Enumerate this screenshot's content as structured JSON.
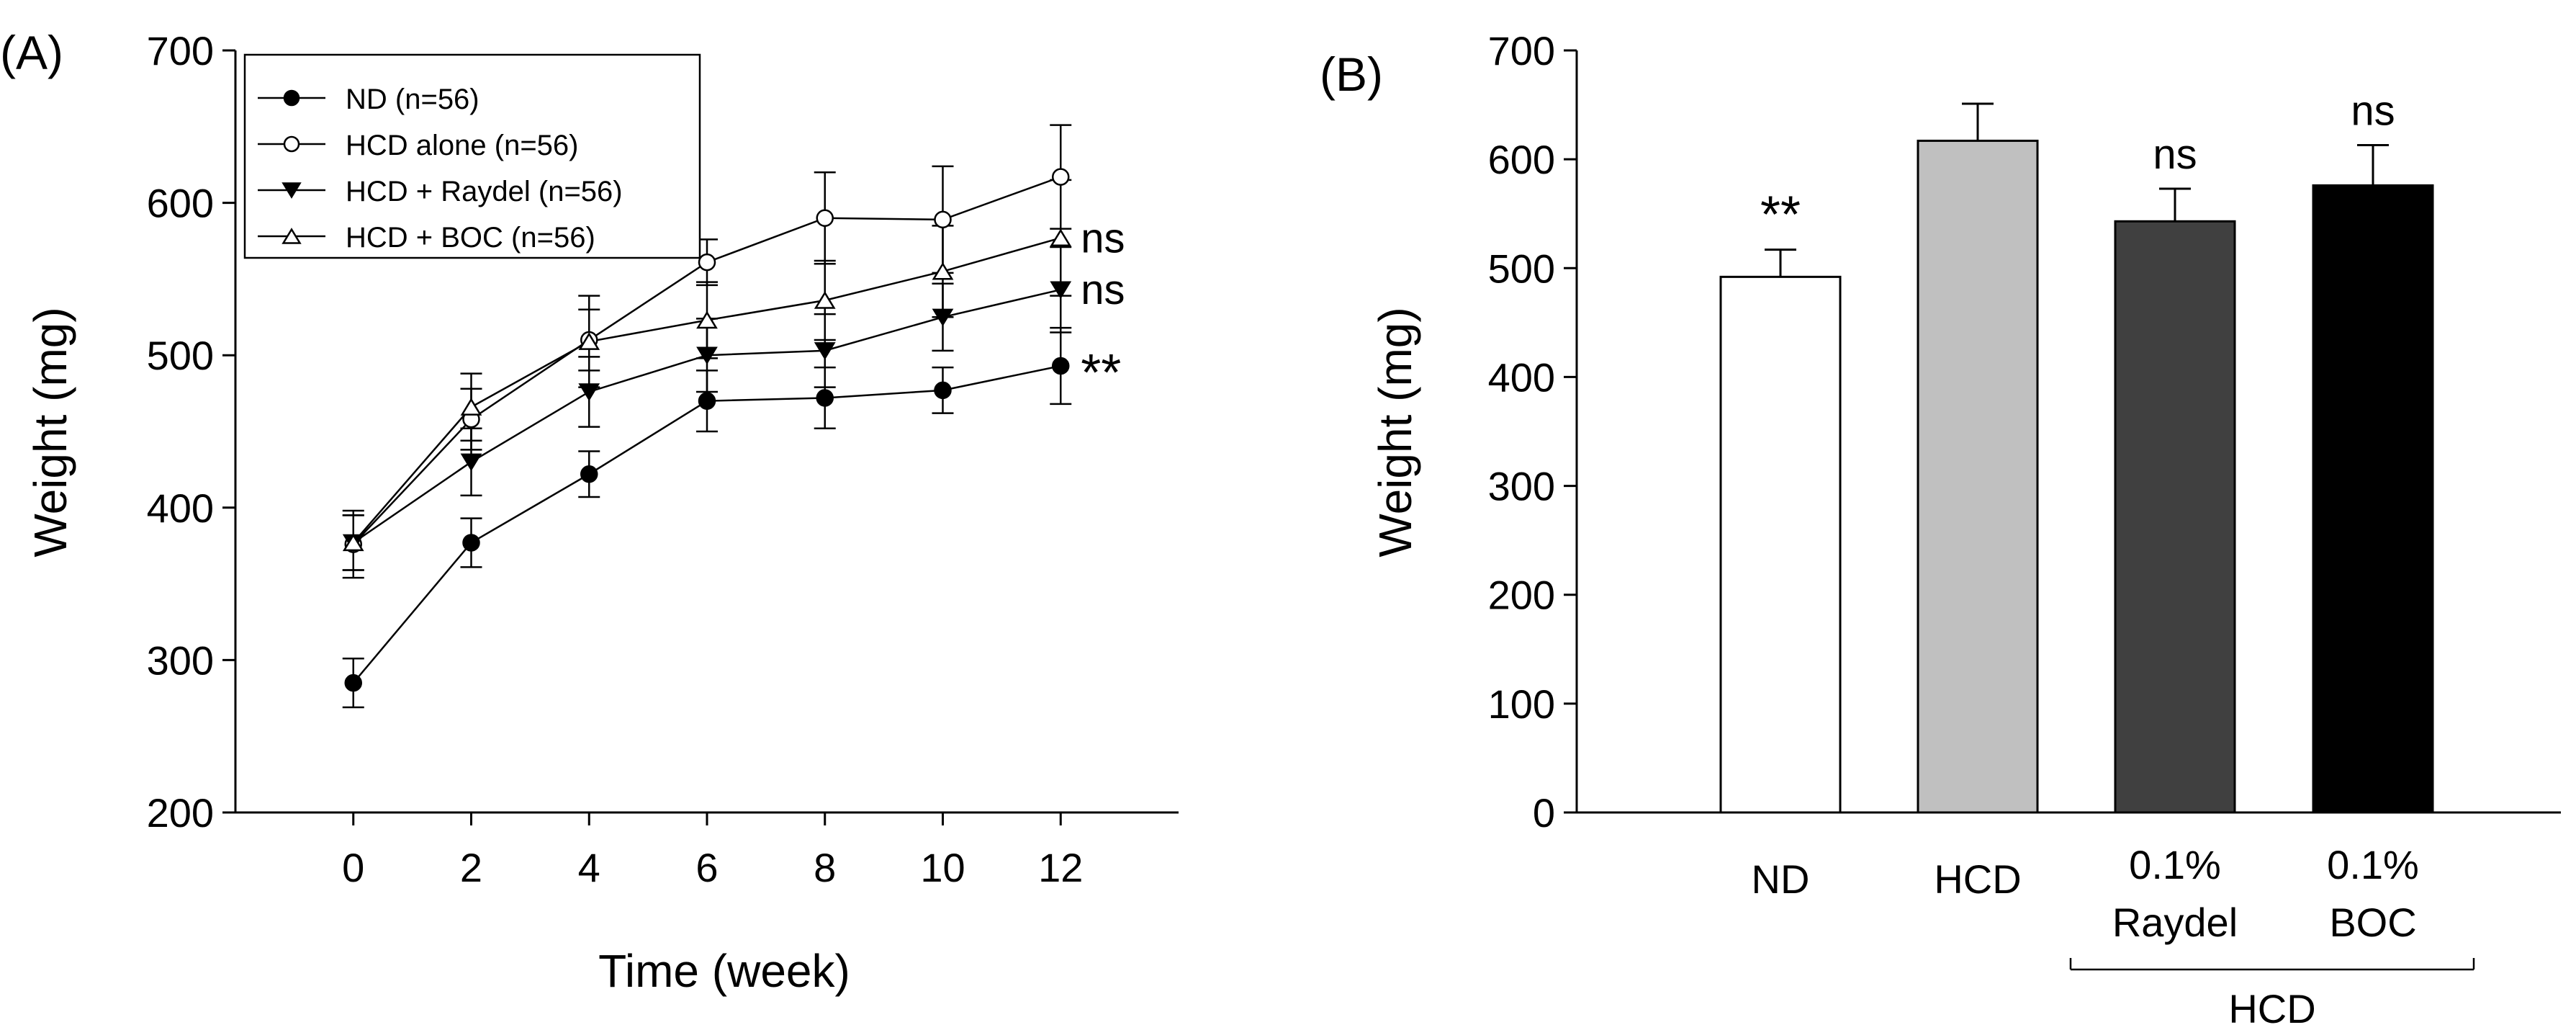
{
  "chart_data": [
    {
      "panel_label": "(A)",
      "type": "line",
      "xlabel": "Time (week)",
      "ylabel": "Weight (mg)",
      "ylim": [
        200,
        700
      ],
      "xlim": [
        -2,
        14
      ],
      "xticks": [
        "0",
        "2",
        "4",
        "6",
        "8",
        "10",
        "12"
      ],
      "x": [
        0,
        2,
        4,
        6,
        8,
        10,
        12
      ],
      "yticks": [
        "200",
        "300",
        "400",
        "500",
        "600",
        "700"
      ],
      "legend_position": "top-left",
      "series": [
        {
          "name": "ND (n=56)",
          "marker": "filled-circle",
          "values": [
            285,
            377,
            422,
            470,
            472,
            477,
            493
          ],
          "errors": [
            16,
            16,
            15,
            20,
            20,
            15,
            25
          ]
        },
        {
          "name": "HCD alone (n=56)",
          "marker": "open-circle",
          "values": [
            376,
            458,
            510,
            561,
            590,
            589,
            617
          ],
          "errors": [
            22,
            20,
            20,
            15,
            30,
            35,
            34
          ]
        },
        {
          "name": "HCD + Raydel (n=56)",
          "marker": "filled-triangle-down",
          "values": [
            377,
            430,
            476,
            500,
            503,
            525,
            543
          ],
          "errors": [
            18,
            22,
            23,
            24,
            24,
            22,
            28
          ]
        },
        {
          "name": "HCD + BOC (n=56)",
          "marker": "open-triangle-up",
          "values": [
            377,
            466,
            509,
            523,
            536,
            555,
            577
          ],
          "errors": [
            18,
            22,
            30,
            25,
            26,
            30,
            38
          ]
        }
      ],
      "annotations": [
        {
          "series": "HCD + BOC (n=56)",
          "text": "ns"
        },
        {
          "series": "HCD + Raydel (n=56)",
          "text": "ns"
        },
        {
          "series": "ND (n=56)",
          "text": "**"
        }
      ]
    },
    {
      "panel_label": "(B)",
      "type": "bar",
      "ylabel": "Weight (mg)",
      "ylim": [
        0,
        700
      ],
      "yticks": [
        "0",
        "100",
        "200",
        "300",
        "400",
        "500",
        "600",
        "700"
      ],
      "categories": [
        {
          "line1": "ND",
          "line2": ""
        },
        {
          "line1": "HCD",
          "line2": ""
        },
        {
          "line1": "0.1%",
          "line2": "Raydel"
        },
        {
          "line1": "0.1%",
          "line2": "BOC"
        }
      ],
      "values": [
        492,
        617,
        543,
        576
      ],
      "errors": [
        25,
        34,
        30,
        37
      ],
      "colors": [
        "#ffffff",
        "#c0c0c0",
        "#404040",
        "#000000"
      ],
      "annotations": [
        "**",
        "",
        "ns",
        "ns"
      ],
      "group_label": "HCD"
    }
  ]
}
